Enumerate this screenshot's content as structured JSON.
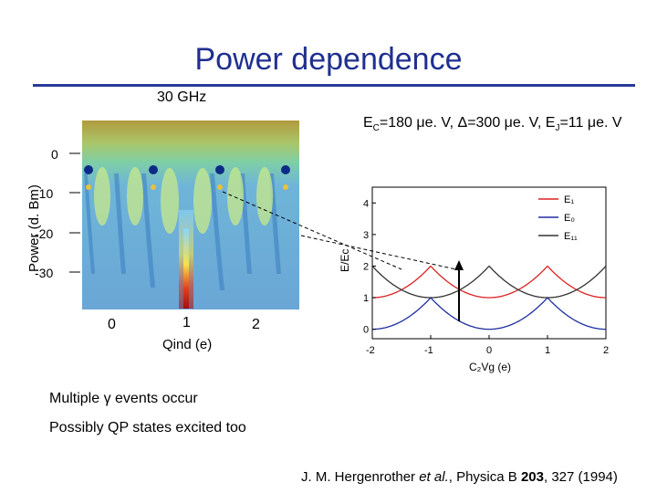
{
  "slide": {
    "title": "Power dependence",
    "frequency": "30 GHz",
    "params": {
      "ec_pre": "E",
      "ec_sub": "C",
      "ec_val": "=180 μe. V, ",
      "delta": "Δ=300 μe. V, ",
      "ej_pre": "E",
      "ej_sub": "J",
      "ej_val": "=11 μe. V"
    },
    "bullet1": "Multiple γ events occur",
    "bullet2": "Possibly QP states excited too",
    "citation": {
      "authors": "J. M. Hergenrother ",
      "etal": "et al.",
      "journal": ", Physica B ",
      "volume": "203",
      "rest": ", 327 (1994)"
    }
  },
  "chart_data": [
    {
      "type": "heatmap",
      "title": "",
      "xlabel": "Qind (e)",
      "ylabel": "Power (d. Bm)",
      "x_ticks": [
        "0",
        "1",
        "2"
      ],
      "y_ticks": [
        "0",
        "-10",
        "-20",
        "-30"
      ],
      "ylim": [
        -40,
        7
      ],
      "xlim": [
        -0.25,
        1.5
      ]
    },
    {
      "type": "line",
      "xlabel": "C₂Vg (e)",
      "ylabel": "E/Ec",
      "xlim": [
        -2,
        2
      ],
      "ylim": [
        -0.3,
        4.5
      ],
      "x_ticks": [
        "-2",
        "-1",
        "0",
        "1",
        "2"
      ],
      "y_ticks": [
        "0",
        "1",
        "2",
        "3",
        "4"
      ],
      "legend_position": "top-right",
      "series": [
        {
          "name": "E₁",
          "color": "#dd2222",
          "curve": "min((x-2k)^2 + 1, over even k)"
        },
        {
          "name": "E₀",
          "color": "#1f2f9f",
          "curve": "min((x-2k)^2, over even k)"
        },
        {
          "name": "E₁₁",
          "color": "#333333",
          "curve": "min((x-2k-1)^2 + 1, over integer k)"
        }
      ],
      "annotation": {
        "type": "arrow",
        "x": -0.5,
        "y_from": 0.25,
        "y_to": 2.25
      }
    }
  ]
}
